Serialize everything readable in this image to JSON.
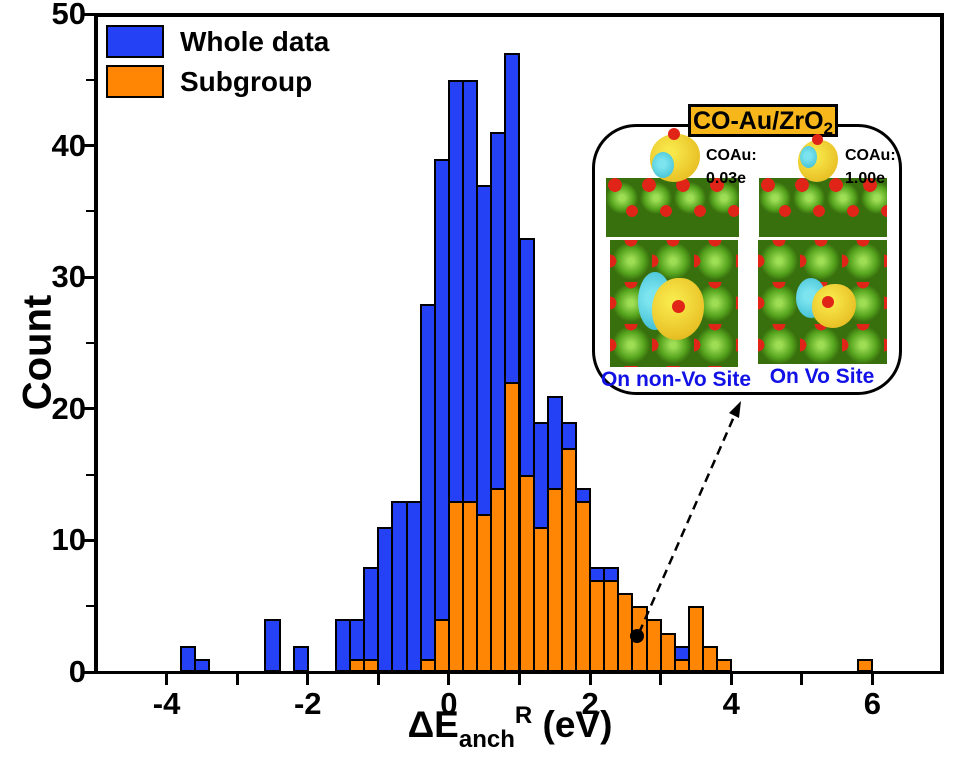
{
  "figure": {
    "y_axis": {
      "label": "Count",
      "tick_labels": [
        0,
        10,
        20,
        30,
        40,
        50
      ],
      "minor_step": 5,
      "lim": [
        0,
        50
      ]
    },
    "x_axis": {
      "label_prefix": "ΔE",
      "label_sub": "anch",
      "label_sup": "R",
      "label_suffix": " (eV)",
      "tick_labels": [
        -4,
        -2,
        0,
        2,
        4,
        6
      ],
      "tick_step": 1,
      "lim": [
        -5,
        7
      ]
    },
    "legend": [
      {
        "label": "Whole data",
        "color": "#2441F5"
      },
      {
        "label": "Subgroup",
        "color": "#FF8604"
      }
    ]
  },
  "chart_data": {
    "type": "bar",
    "subtype": "overlaid-histogram",
    "title": "",
    "xlabel": "ΔE_anch^R (eV)",
    "ylabel": "Count",
    "xlim": [
      -5,
      7
    ],
    "ylim": [
      0,
      50
    ],
    "grid": false,
    "legend_position": "upper-left",
    "bin_width": 0.2,
    "bin_starts": [
      -3.8,
      -3.6,
      -2.6,
      -2.2,
      -1.6,
      -1.4,
      -1.2,
      -1.0,
      -0.8,
      -0.6,
      -0.4,
      -0.2,
      0.0,
      0.2,
      0.4,
      0.6,
      0.8,
      1.0,
      1.2,
      1.4,
      1.6,
      1.8,
      2.0,
      2.2,
      2.4,
      2.6,
      2.8,
      3.0,
      3.2,
      3.4,
      3.6,
      3.8,
      5.8
    ],
    "series": [
      {
        "name": "Whole data",
        "color": "#2441F5",
        "counts": [
          2,
          1,
          4,
          2,
          4,
          4,
          8,
          11,
          13,
          13,
          28,
          39,
          45,
          45,
          37,
          41,
          47,
          33,
          19,
          21,
          19,
          14,
          8,
          8,
          6,
          5,
          4,
          3,
          2,
          5,
          2,
          1,
          1
        ]
      },
      {
        "name": "Subgroup",
        "color": "#FF8604",
        "counts": [
          0,
          0,
          0,
          0,
          0,
          1,
          1,
          0,
          0,
          0,
          1,
          4,
          13,
          13,
          12,
          14,
          22,
          15,
          11,
          14,
          17,
          13,
          7,
          7,
          6,
          5,
          4,
          3,
          1,
          5,
          2,
          1,
          1
        ]
      }
    ]
  },
  "inset": {
    "title_main": "CO-Au/ZrO",
    "title_sub": "2",
    "title_bg": "#F7B71B",
    "site_label_color": "#1212E6",
    "panels": [
      {
        "charge_label": "COAu:",
        "charge_value": "0.03e",
        "site_label": "On non-Vo Site"
      },
      {
        "charge_label": "COAu:",
        "charge_value": "1.00e",
        "site_label": "On Vo Site"
      }
    ]
  },
  "annotation": {
    "point_x": 2.67,
    "point_y": 2.7
  }
}
